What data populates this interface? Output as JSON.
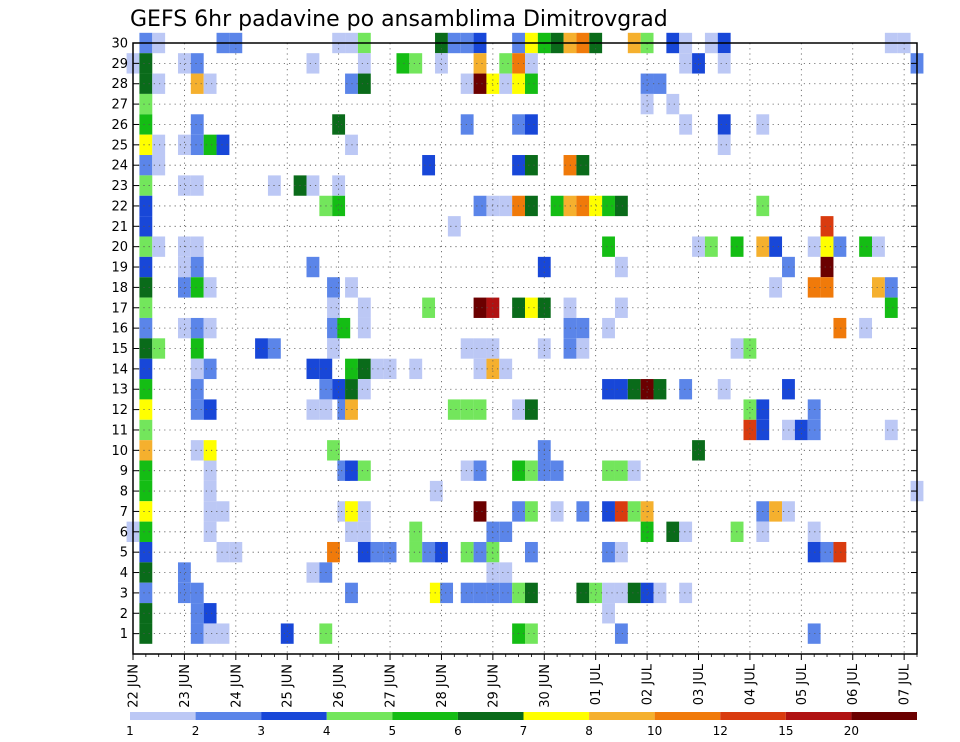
{
  "chart_data": {
    "type": "heatmap",
    "title": "GEFS 6hr padavine po ansamblima Dimitrovgrad",
    "xlabel": "",
    "ylabel": "",
    "y_ticks": [
      1,
      2,
      3,
      4,
      5,
      6,
      7,
      8,
      9,
      10,
      11,
      12,
      13,
      14,
      15,
      16,
      17,
      18,
      19,
      20,
      21,
      22,
      23,
      24,
      25,
      26,
      27,
      28,
      29,
      30
    ],
    "x_ticks": [
      "22 JUN",
      "23 JUN",
      "24 JUN",
      "25 JUN",
      "26 JUN",
      "27 JUN",
      "28 JUN",
      "29 JUN",
      "30 JUN",
      "01 JUL",
      "02 JUL",
      "03 JUL",
      "04 JUL",
      "05 JUL",
      "06 JUL",
      "07 JUL"
    ],
    "x_range_days": [
      22,
      37.25
    ],
    "y_range": [
      0,
      30
    ],
    "grid": "dotted",
    "legend_position": "bottom",
    "levels": [
      {
        "label": "1",
        "color": "#bcc8f5"
      },
      {
        "label": "2",
        "color": "#5b85e9"
      },
      {
        "label": "3",
        "color": "#1847d8"
      },
      {
        "label": "4",
        "color": "#73e65c"
      },
      {
        "label": "5",
        "color": "#14bd14"
      },
      {
        "label": "6",
        "color": "#0a6b1a"
      },
      {
        "label": "7",
        "color": "#ffff00"
      },
      {
        "label": "8",
        "color": "#f5b02e"
      },
      {
        "label": "10",
        "color": "#f07a0a"
      },
      {
        "label": "12",
        "color": "#d93b0f"
      },
      {
        "label": "15",
        "color": "#b01212"
      },
      {
        "label": "20",
        "color": "#6b0000"
      }
    ],
    "cells": [
      [
        22.25,
        30,
        1
      ],
      [
        22.5,
        30,
        0
      ],
      [
        23.75,
        30,
        1
      ],
      [
        24,
        30,
        1
      ],
      [
        26,
        30,
        0
      ],
      [
        26.25,
        30,
        0
      ],
      [
        26.5,
        30,
        3
      ],
      [
        28,
        30,
        5
      ],
      [
        28.25,
        30,
        1
      ],
      [
        28.5,
        30,
        1
      ],
      [
        28.75,
        30,
        2
      ],
      [
        29.5,
        30,
        1
      ],
      [
        29.75,
        30,
        6
      ],
      [
        30,
        30,
        4
      ],
      [
        30.25,
        30,
        5
      ],
      [
        30.5,
        30,
        7
      ],
      [
        30.75,
        30,
        8
      ],
      [
        31,
        30,
        5
      ],
      [
        31.75,
        30,
        7
      ],
      [
        32,
        30,
        3
      ],
      [
        32.5,
        30,
        2
      ],
      [
        32.75,
        30,
        0
      ],
      [
        33.25,
        30,
        0
      ],
      [
        33.5,
        30,
        2
      ],
      [
        36.75,
        30,
        0
      ],
      [
        37,
        30,
        0
      ],
      [
        22,
        29,
        0
      ],
      [
        22.25,
        29,
        5
      ],
      [
        23,
        29,
        0
      ],
      [
        23.25,
        29,
        1
      ],
      [
        25.5,
        29,
        0
      ],
      [
        26.5,
        29,
        0
      ],
      [
        27.25,
        29,
        4
      ],
      [
        27.5,
        29,
        3
      ],
      [
        28,
        29,
        0
      ],
      [
        28.75,
        29,
        7
      ],
      [
        29.25,
        29,
        3
      ],
      [
        29.5,
        29,
        8
      ],
      [
        29.75,
        29,
        0
      ],
      [
        32.75,
        29,
        0
      ],
      [
        33,
        29,
        2
      ],
      [
        33.5,
        29,
        0
      ],
      [
        37.25,
        29,
        1
      ],
      [
        22.25,
        28,
        5
      ],
      [
        22.5,
        28,
        0
      ],
      [
        23.25,
        28,
        7
      ],
      [
        23.5,
        28,
        0
      ],
      [
        26.25,
        28,
        1
      ],
      [
        26.5,
        28,
        5
      ],
      [
        28.5,
        28,
        0
      ],
      [
        28.75,
        28,
        11
      ],
      [
        29,
        28,
        6
      ],
      [
        29.25,
        28,
        0
      ],
      [
        29.5,
        28,
        6
      ],
      [
        29.75,
        28,
        4
      ],
      [
        32,
        28,
        1
      ],
      [
        32.25,
        28,
        1
      ],
      [
        22.25,
        27,
        3
      ],
      [
        32,
        27,
        0
      ],
      [
        32.5,
        27,
        0
      ],
      [
        22.25,
        26,
        4
      ],
      [
        23.25,
        26,
        1
      ],
      [
        26,
        26,
        5
      ],
      [
        28.5,
        26,
        1
      ],
      [
        29.5,
        26,
        1
      ],
      [
        29.75,
        26,
        2
      ],
      [
        32.75,
        26,
        0
      ],
      [
        33.5,
        26,
        2
      ],
      [
        34.25,
        26,
        0
      ],
      [
        22.25,
        25,
        6
      ],
      [
        22.5,
        25,
        0
      ],
      [
        23,
        25,
        0
      ],
      [
        23.25,
        25,
        1
      ],
      [
        23.5,
        25,
        4
      ],
      [
        23.75,
        25,
        2
      ],
      [
        26.25,
        25,
        0
      ],
      [
        33.5,
        25,
        0
      ],
      [
        22.25,
        24,
        1
      ],
      [
        22.5,
        24,
        0
      ],
      [
        27.75,
        24,
        2
      ],
      [
        29.5,
        24,
        2
      ],
      [
        29.75,
        24,
        5
      ],
      [
        30.5,
        24,
        8
      ],
      [
        30.75,
        24,
        5
      ],
      [
        22.25,
        23,
        3
      ],
      [
        23,
        23,
        0
      ],
      [
        23.25,
        23,
        0
      ],
      [
        24.75,
        23,
        0
      ],
      [
        25.25,
        23,
        5
      ],
      [
        25.5,
        23,
        0
      ],
      [
        26,
        23,
        0
      ],
      [
        22.25,
        22,
        2
      ],
      [
        25.75,
        22,
        3
      ],
      [
        26,
        22,
        4
      ],
      [
        28.75,
        22,
        1
      ],
      [
        29,
        22,
        0
      ],
      [
        29.25,
        22,
        0
      ],
      [
        29.5,
        22,
        8
      ],
      [
        29.75,
        22,
        5
      ],
      [
        30.25,
        22,
        4
      ],
      [
        30.5,
        22,
        7
      ],
      [
        30.75,
        22,
        8
      ],
      [
        31,
        22,
        6
      ],
      [
        31.25,
        22,
        4
      ],
      [
        31.5,
        22,
        5
      ],
      [
        34.25,
        22,
        3
      ],
      [
        22.25,
        21,
        2
      ],
      [
        28.25,
        21,
        0
      ],
      [
        35.5,
        21,
        9
      ],
      [
        22.25,
        20,
        3
      ],
      [
        22.5,
        20,
        0
      ],
      [
        23,
        20,
        0
      ],
      [
        23.25,
        20,
        0
      ],
      [
        31.25,
        20,
        4
      ],
      [
        33,
        20,
        0
      ],
      [
        33.25,
        20,
        3
      ],
      [
        33.75,
        20,
        4
      ],
      [
        34.25,
        20,
        7
      ],
      [
        34.5,
        20,
        2
      ],
      [
        35.25,
        20,
        0
      ],
      [
        35.5,
        20,
        6
      ],
      [
        35.75,
        20,
        1
      ],
      [
        36.25,
        20,
        4
      ],
      [
        36.5,
        20,
        0
      ],
      [
        22.25,
        19,
        2
      ],
      [
        23,
        19,
        0
      ],
      [
        23.25,
        19,
        1
      ],
      [
        25.5,
        19,
        1
      ],
      [
        30,
        19,
        2
      ],
      [
        31.5,
        19,
        0
      ],
      [
        34.75,
        19,
        1
      ],
      [
        35.5,
        19,
        11
      ],
      [
        22.25,
        18,
        5
      ],
      [
        23,
        18,
        1
      ],
      [
        23.25,
        18,
        4
      ],
      [
        23.5,
        18,
        0
      ],
      [
        25.9,
        18,
        1
      ],
      [
        26.25,
        18,
        0
      ],
      [
        34.5,
        18,
        0
      ],
      [
        35.25,
        18,
        8
      ],
      [
        35.5,
        18,
        8
      ],
      [
        36.5,
        18,
        7
      ],
      [
        36.75,
        18,
        1
      ],
      [
        22.25,
        17,
        3
      ],
      [
        25.9,
        17,
        0
      ],
      [
        26.5,
        17,
        0
      ],
      [
        27.75,
        17,
        3
      ],
      [
        28.75,
        17,
        11
      ],
      [
        29,
        17,
        10
      ],
      [
        29.5,
        17,
        5
      ],
      [
        29.75,
        17,
        6
      ],
      [
        30,
        17,
        5
      ],
      [
        30.5,
        17,
        0
      ],
      [
        31.5,
        17,
        0
      ],
      [
        36.75,
        17,
        4
      ],
      [
        22.25,
        16,
        1
      ],
      [
        23,
        16,
        0
      ],
      [
        23.25,
        16,
        1
      ],
      [
        23.5,
        16,
        0
      ],
      [
        25.9,
        16,
        1
      ],
      [
        26.1,
        16,
        4
      ],
      [
        26.5,
        16,
        0
      ],
      [
        30.5,
        16,
        1
      ],
      [
        30.75,
        16,
        1
      ],
      [
        31.25,
        16,
        0
      ],
      [
        35.75,
        16,
        8
      ],
      [
        36.25,
        16,
        0
      ],
      [
        22.25,
        15,
        5
      ],
      [
        22.5,
        15,
        3
      ],
      [
        23.25,
        15,
        4
      ],
      [
        24.5,
        15,
        2
      ],
      [
        24.75,
        15,
        1
      ],
      [
        25.9,
        15,
        0
      ],
      [
        28.5,
        15,
        0
      ],
      [
        28.75,
        15,
        0
      ],
      [
        29,
        15,
        0
      ],
      [
        30,
        15,
        0
      ],
      [
        30.5,
        15,
        1
      ],
      [
        30.75,
        15,
        0
      ],
      [
        33.75,
        15,
        0
      ],
      [
        34,
        15,
        3
      ],
      [
        22.25,
        14,
        2
      ],
      [
        23.25,
        14,
        0
      ],
      [
        23.5,
        14,
        1
      ],
      [
        25.5,
        14,
        2
      ],
      [
        25.75,
        14,
        2
      ],
      [
        26.25,
        14,
        4
      ],
      [
        26.5,
        14,
        5
      ],
      [
        26.75,
        14,
        0
      ],
      [
        27,
        14,
        0
      ],
      [
        27.5,
        14,
        0
      ],
      [
        28.75,
        14,
        0
      ],
      [
        29,
        14,
        7
      ],
      [
        29.25,
        14,
        0
      ],
      [
        22.25,
        13,
        4
      ],
      [
        23.25,
        13,
        1
      ],
      [
        25.75,
        13,
        1
      ],
      [
        26,
        13,
        2
      ],
      [
        26.25,
        13,
        5
      ],
      [
        26.5,
        13,
        0
      ],
      [
        31.25,
        13,
        2
      ],
      [
        31.5,
        13,
        2
      ],
      [
        31.75,
        13,
        5
      ],
      [
        32,
        13,
        11
      ],
      [
        32.25,
        13,
        5
      ],
      [
        32.75,
        13,
        1
      ],
      [
        33.5,
        13,
        0
      ],
      [
        34.75,
        13,
        2
      ],
      [
        22.25,
        12,
        6
      ],
      [
        23.25,
        12,
        1
      ],
      [
        23.5,
        12,
        2
      ],
      [
        25.5,
        12,
        0
      ],
      [
        25.75,
        12,
        0
      ],
      [
        26.1,
        12,
        1
      ],
      [
        26.25,
        12,
        7
      ],
      [
        28.25,
        12,
        3
      ],
      [
        28.5,
        12,
        3
      ],
      [
        28.75,
        12,
        3
      ],
      [
        29.5,
        12,
        0
      ],
      [
        29.75,
        12,
        5
      ],
      [
        34,
        12,
        3
      ],
      [
        34.25,
        12,
        2
      ],
      [
        35.25,
        12,
        1
      ],
      [
        22.25,
        11,
        3
      ],
      [
        34,
        11,
        9
      ],
      [
        34.25,
        11,
        2
      ],
      [
        34.75,
        11,
        0
      ],
      [
        35,
        11,
        2
      ],
      [
        35.25,
        11,
        1
      ],
      [
        36.75,
        11,
        0
      ],
      [
        22.25,
        10,
        7
      ],
      [
        23.25,
        10,
        0
      ],
      [
        23.5,
        10,
        6
      ],
      [
        25.9,
        10,
        3
      ],
      [
        30,
        10,
        1
      ],
      [
        33,
        10,
        5
      ],
      [
        22.25,
        9,
        4
      ],
      [
        23.5,
        9,
        0
      ],
      [
        26.1,
        9,
        1
      ],
      [
        26.25,
        9,
        2
      ],
      [
        26.5,
        9,
        3
      ],
      [
        28.5,
        9,
        0
      ],
      [
        28.75,
        9,
        1
      ],
      [
        29.5,
        9,
        4
      ],
      [
        29.75,
        9,
        3
      ],
      [
        30,
        9,
        1
      ],
      [
        30.25,
        9,
        1
      ],
      [
        31.25,
        9,
        3
      ],
      [
        31.5,
        9,
        3
      ],
      [
        31.75,
        9,
        0
      ],
      [
        22.25,
        8,
        4
      ],
      [
        23.5,
        8,
        0
      ],
      [
        27.9,
        8,
        0
      ],
      [
        37.25,
        8,
        0
      ],
      [
        22.25,
        7,
        6
      ],
      [
        23.5,
        7,
        0
      ],
      [
        23.75,
        7,
        0
      ],
      [
        26.1,
        7,
        0
      ],
      [
        26.25,
        7,
        6
      ],
      [
        26.5,
        7,
        0
      ],
      [
        28.75,
        7,
        11
      ],
      [
        29.5,
        7,
        1
      ],
      [
        29.75,
        7,
        3
      ],
      [
        30.25,
        7,
        0
      ],
      [
        30.75,
        7,
        1
      ],
      [
        31.25,
        7,
        2
      ],
      [
        31.5,
        7,
        9
      ],
      [
        31.75,
        7,
        3
      ],
      [
        32,
        7,
        7
      ],
      [
        34.25,
        7,
        1
      ],
      [
        34.5,
        7,
        7
      ],
      [
        34.75,
        7,
        0
      ],
      [
        22.25,
        6,
        4
      ],
      [
        22,
        6,
        0
      ],
      [
        23.5,
        6,
        0
      ],
      [
        26.25,
        6,
        0
      ],
      [
        26.5,
        6,
        0
      ],
      [
        27.5,
        6,
        3
      ],
      [
        29,
        6,
        1
      ],
      [
        29.25,
        6,
        1
      ],
      [
        32,
        6,
        4
      ],
      [
        32.5,
        6,
        5
      ],
      [
        32.75,
        6,
        0
      ],
      [
        33.75,
        6,
        3
      ],
      [
        34.25,
        6,
        0
      ],
      [
        35.25,
        6,
        0
      ],
      [
        22.25,
        5,
        2
      ],
      [
        23.75,
        5,
        0
      ],
      [
        24,
        5,
        0
      ],
      [
        25.9,
        5,
        8
      ],
      [
        26.5,
        5,
        2
      ],
      [
        26.75,
        5,
        1
      ],
      [
        27,
        5,
        1
      ],
      [
        27.5,
        5,
        3
      ],
      [
        27.75,
        5,
        1
      ],
      [
        28,
        5,
        2
      ],
      [
        28.5,
        5,
        3
      ],
      [
        28.75,
        5,
        1
      ],
      [
        29,
        5,
        3
      ],
      [
        29.75,
        5,
        1
      ],
      [
        31.25,
        5,
        1
      ],
      [
        31.5,
        5,
        0
      ],
      [
        35.25,
        5,
        2
      ],
      [
        35.5,
        5,
        1
      ],
      [
        35.75,
        5,
        9
      ],
      [
        22.25,
        4,
        5
      ],
      [
        23,
        4,
        1
      ],
      [
        25.5,
        4,
        0
      ],
      [
        25.75,
        4,
        1
      ],
      [
        29,
        4,
        0
      ],
      [
        29.25,
        4,
        0
      ],
      [
        22.25,
        3,
        1
      ],
      [
        23,
        3,
        1
      ],
      [
        23.25,
        3,
        1
      ],
      [
        26.25,
        3,
        1
      ],
      [
        27.9,
        3,
        6
      ],
      [
        28.1,
        3,
        1
      ],
      [
        28.5,
        3,
        1
      ],
      [
        28.75,
        3,
        1
      ],
      [
        29,
        3,
        1
      ],
      [
        29.25,
        3,
        1
      ],
      [
        29.5,
        3,
        3
      ],
      [
        29.75,
        3,
        5
      ],
      [
        30.75,
        3,
        5
      ],
      [
        31,
        3,
        3
      ],
      [
        31.25,
        3,
        0
      ],
      [
        31.5,
        3,
        0
      ],
      [
        31.75,
        3,
        5
      ],
      [
        32,
        3,
        2
      ],
      [
        32.25,
        3,
        0
      ],
      [
        32.75,
        3,
        0
      ],
      [
        22.25,
        2,
        5
      ],
      [
        23.25,
        2,
        1
      ],
      [
        23.5,
        2,
        2
      ],
      [
        31.25,
        2,
        0
      ],
      [
        22.25,
        1,
        5
      ],
      [
        23.25,
        1,
        1
      ],
      [
        23.5,
        1,
        0
      ],
      [
        23.75,
        1,
        0
      ],
      [
        25,
        1,
        2
      ],
      [
        25.75,
        1,
        3
      ],
      [
        29.5,
        1,
        4
      ],
      [
        29.75,
        1,
        3
      ],
      [
        31.5,
        1,
        1
      ],
      [
        35.25,
        1,
        1
      ]
    ]
  }
}
